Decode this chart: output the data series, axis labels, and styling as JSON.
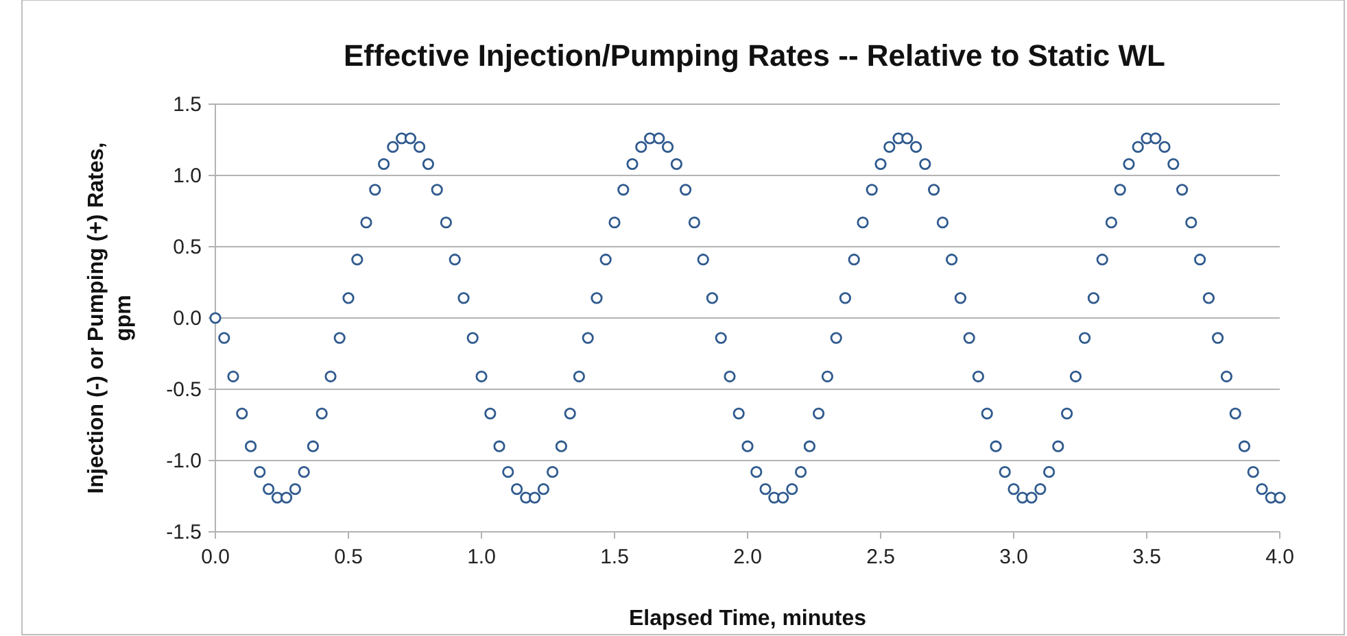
{
  "chart_data": {
    "type": "scatter",
    "title": "Effective Injection/Pumping Rates -- Relative to Static WL",
    "xlabel": "Elapsed Time, minutes",
    "ylabel": "Injection (-) or Pumping (+) Rates, gpm",
    "x": [
      0,
      0.033,
      0.067,
      0.1,
      0.133,
      0.167,
      0.2,
      0.233,
      0.267,
      0.3,
      0.333,
      0.367,
      0.4,
      0.433,
      0.467,
      0.5,
      0.533,
      0.567,
      0.6,
      0.633,
      0.667,
      0.7,
      0.733,
      0.767,
      0.8,
      0.833,
      0.867,
      0.9,
      0.933,
      0.967,
      1,
      1.033,
      1.067,
      1.1,
      1.133,
      1.167,
      1.2,
      1.233,
      1.267,
      1.3,
      1.333,
      1.367,
      1.4,
      1.433,
      1.467,
      1.5,
      1.533,
      1.567,
      1.6,
      1.633,
      1.667,
      1.7,
      1.733,
      1.767,
      1.8,
      1.833,
      1.867,
      1.9,
      1.933,
      1.967,
      2,
      2.033,
      2.067,
      2.1,
      2.133,
      2.167,
      2.2,
      2.233,
      2.267,
      2.3,
      2.333,
      2.367,
      2.4,
      2.433,
      2.467,
      2.5,
      2.533,
      2.567,
      2.6,
      2.633,
      2.667,
      2.7,
      2.733,
      2.767,
      2.8,
      2.833,
      2.867,
      2.9,
      2.933,
      2.967,
      3,
      3.033,
      3.067,
      3.1,
      3.133,
      3.167,
      3.2,
      3.233,
      3.267,
      3.3,
      3.333,
      3.367,
      3.4,
      3.433,
      3.467,
      3.5,
      3.533,
      3.567,
      3.6,
      3.633,
      3.667,
      3.7,
      3.733,
      3.767,
      3.8,
      3.833,
      3.867,
      3.9,
      3.933,
      3.967,
      4
    ],
    "series": [
      {
        "color": "#2f5a8e",
        "values": [
          0,
          -0.14,
          -0.41,
          -0.67,
          -0.9,
          -1.08,
          -1.2,
          -1.26,
          -1.26,
          -1.2,
          -1.08,
          -0.9,
          -0.67,
          -0.41,
          -0.14,
          0.14,
          0.41,
          0.67,
          0.9,
          1.08,
          1.2,
          1.26,
          1.26,
          1.2,
          1.08,
          0.9,
          0.67,
          0.41,
          0.14,
          -0.14,
          -0.41,
          -0.67,
          -0.9,
          -1.08,
          -1.2,
          -1.26,
          -1.26,
          -1.2,
          -1.08,
          -0.9,
          -0.67,
          -0.41,
          -0.14,
          0.14,
          0.41,
          0.67,
          0.9,
          1.08,
          1.2,
          1.26,
          1.26,
          1.2,
          1.08,
          0.9,
          0.67,
          0.41,
          0.14,
          -0.14,
          -0.41,
          -0.67,
          -0.9,
          -1.08,
          -1.2,
          -1.26,
          -1.26,
          -1.2,
          -1.08,
          -0.9,
          -0.67,
          -0.41,
          -0.14,
          0.14,
          0.41,
          0.67,
          0.9,
          1.08,
          1.2,
          1.26,
          1.26,
          1.2,
          1.08,
          0.9,
          0.67,
          0.41,
          0.14,
          -0.14,
          -0.41,
          -0.67,
          -0.9,
          -1.08,
          -1.2,
          -1.26,
          -1.26,
          -1.2,
          -1.08,
          -0.9,
          -0.67,
          -0.41,
          -0.14,
          0.14,
          0.41,
          0.67,
          0.9,
          1.08,
          1.2,
          1.26,
          1.26,
          1.2,
          1.08,
          0.9,
          0.67,
          0.41,
          0.14,
          -0.14,
          -0.41,
          -0.67,
          -0.9,
          -1.08,
          -1.2,
          -1.26,
          -1.26
        ]
      }
    ],
    "xlim": [
      0,
      4
    ],
    "xticks": [
      {
        "value": 0,
        "label": "0.0"
      },
      {
        "value": 0.5,
        "label": "0.5"
      },
      {
        "value": 1,
        "label": "1.0"
      },
      {
        "value": 1.5,
        "label": "1.5"
      },
      {
        "value": 2,
        "label": "2.0"
      },
      {
        "value": 2.5,
        "label": "2.5"
      },
      {
        "value": 3,
        "label": "3.0"
      },
      {
        "value": 3.5,
        "label": "3.5"
      },
      {
        "value": 4,
        "label": "4.0"
      }
    ],
    "ylim": [
      -1.5,
      1.5
    ],
    "yticks": [
      {
        "value": -1.5,
        "label": "-1.5"
      },
      {
        "value": -1,
        "label": "-1.0"
      },
      {
        "value": -0.5,
        "label": "-0.5"
      },
      {
        "value": 0,
        "label": "0.0"
      },
      {
        "value": 0.5,
        "label": "0.5"
      },
      {
        "value": 1,
        "label": "1.0"
      },
      {
        "value": 1.5,
        "label": "1.5"
      }
    ],
    "grid": "y",
    "marker": "circle"
  }
}
